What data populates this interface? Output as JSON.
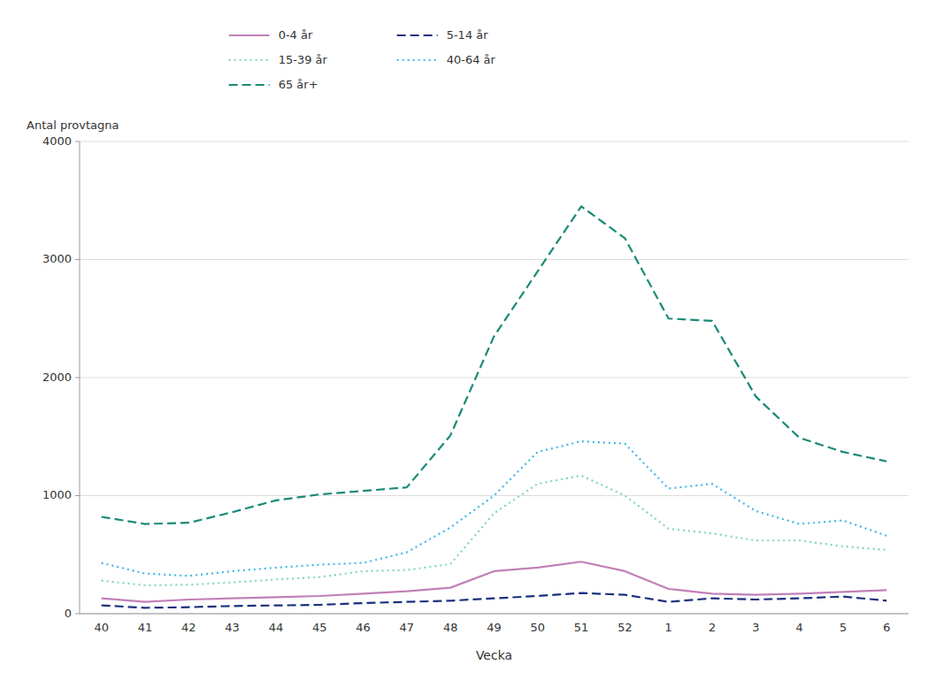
{
  "chart_data": {
    "type": "line",
    "xlabel": "Vecka",
    "ylabel": "Antal provtagna",
    "categories": [
      "40",
      "41",
      "42",
      "43",
      "44",
      "45",
      "46",
      "47",
      "48",
      "49",
      "50",
      "51",
      "52",
      "1",
      "2",
      "3",
      "4",
      "5",
      "6"
    ],
    "series": [
      {
        "name": "0-4 år",
        "color": "#c080b8",
        "line_style": "solid",
        "values": [
          130,
          100,
          120,
          130,
          140,
          150,
          170,
          190,
          220,
          360,
          390,
          440,
          360,
          210,
          170,
          160,
          170,
          185,
          200
        ]
      },
      {
        "name": "5-14 år",
        "color": "#1a3080",
        "line_style": "dashed",
        "values": [
          70,
          50,
          55,
          65,
          70,
          75,
          90,
          100,
          110,
          130,
          150,
          175,
          160,
          100,
          130,
          120,
          130,
          145,
          110
        ]
      },
      {
        "name": "15-39 år",
        "color": "#80d8b0",
        "line_style": "dotted",
        "values": [
          280,
          240,
          245,
          265,
          290,
          310,
          360,
          370,
          420,
          850,
          1100,
          1170,
          1000,
          720,
          680,
          620,
          620,
          570,
          540
        ]
      },
      {
        "name": "40-64 år",
        "color": "#40b8e8",
        "line_style": "dotted",
        "values": [
          430,
          340,
          320,
          360,
          390,
          415,
          430,
          520,
          730,
          1000,
          1370,
          1460,
          1440,
          1060,
          1100,
          870,
          760,
          790,
          660
        ]
      },
      {
        "name": "65 år+",
        "color": "#1a8a78",
        "line_style": "dashed",
        "values": [
          820,
          760,
          770,
          860,
          960,
          1010,
          1040,
          1070,
          1510,
          2350,
          2900,
          3450,
          3180,
          2500,
          2480,
          1840,
          1490,
          1370,
          1290
        ]
      }
    ],
    "ylim": [
      0,
      4000
    ],
    "yticks": [
      0,
      1000,
      2000,
      3000,
      4000
    ],
    "grid": true,
    "legend": "top"
  }
}
